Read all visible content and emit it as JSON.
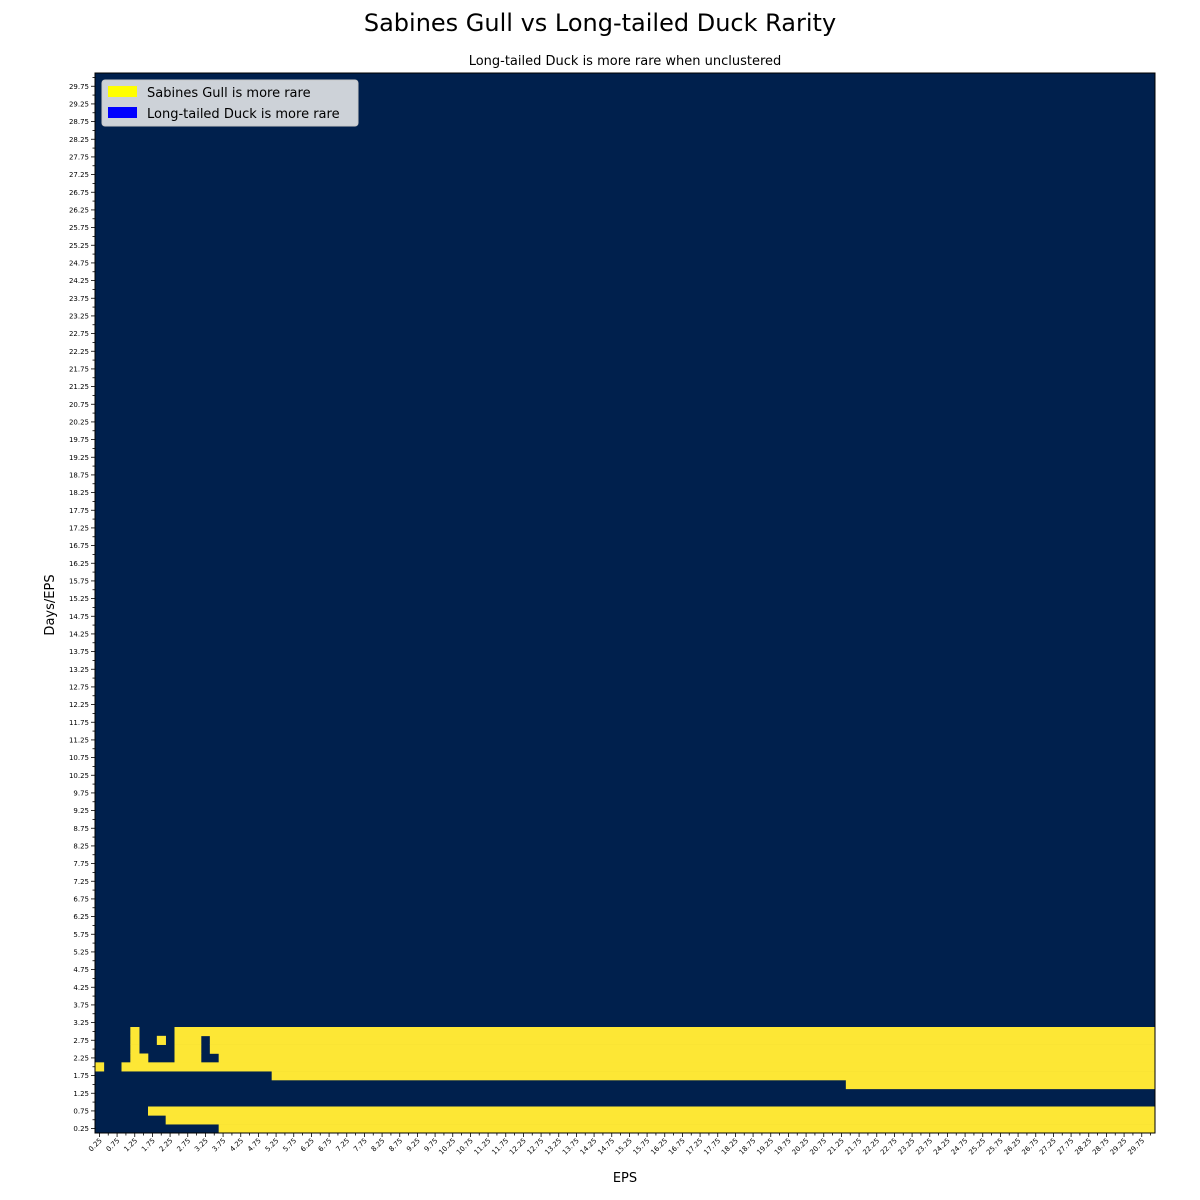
{
  "chart_data": {
    "type": "heatmap",
    "title": "Sabines Gull vs Long-tailed Duck Rarity",
    "subtitle": "Long-tailed Duck is more rare when unclustered",
    "xlabel": "EPS",
    "ylabel": "Days/EPS",
    "x_start": 0.25,
    "x_step": 0.25,
    "x_count": 120,
    "y_start": 0.25,
    "y_step": 0.25,
    "y_count": 120,
    "x_ticks": [
      "0.25",
      "0.75",
      "1.25",
      "1.75",
      "2.25",
      "2.75",
      "3.25",
      "3.75",
      "4.25",
      "4.75",
      "5.25",
      "5.75",
      "6.25",
      "6.75",
      "7.25",
      "7.75",
      "8.25",
      "8.75",
      "9.25",
      "9.75",
      "10.25",
      "10.75",
      "11.25",
      "11.75",
      "12.25",
      "12.75",
      "13.25",
      "13.75",
      "14.25",
      "14.75",
      "15.25",
      "15.75",
      "16.25",
      "16.75",
      "17.25",
      "17.75",
      "18.25",
      "18.75",
      "19.25",
      "19.75",
      "20.25",
      "20.75",
      "21.25",
      "21.75",
      "22.25",
      "22.75",
      "23.25",
      "23.75",
      "24.25",
      "24.75",
      "25.25",
      "25.75",
      "26.25",
      "26.75",
      "27.25",
      "27.75",
      "28.25",
      "28.75",
      "29.25",
      "29.75"
    ],
    "y_ticks": [
      "0.25",
      "0.75",
      "1.25",
      "1.75",
      "2.25",
      "2.75",
      "3.25",
      "3.75",
      "4.25",
      "4.75",
      "5.25",
      "5.75",
      "6.25",
      "6.75",
      "7.25",
      "7.75",
      "8.25",
      "8.75",
      "9.25",
      "9.75",
      "10.25",
      "10.75",
      "11.25",
      "11.75",
      "12.25",
      "12.75",
      "13.25",
      "13.75",
      "14.25",
      "14.75",
      "15.25",
      "15.75",
      "16.25",
      "16.75",
      "17.25",
      "17.75",
      "18.25",
      "18.75",
      "19.25",
      "19.75",
      "20.25",
      "20.75",
      "21.25",
      "21.75",
      "22.25",
      "22.75",
      "23.25",
      "23.75",
      "24.25",
      "24.75",
      "25.25",
      "25.75",
      "26.25",
      "26.75",
      "27.25",
      "27.75",
      "28.25",
      "28.75",
      "29.25",
      "29.75"
    ],
    "background_value": "Long-tailed Duck is more rare",
    "sabines_more_rare_rows": [
      {
        "y": 0.25,
        "x_from": 3.75,
        "x_to": 30.0
      },
      {
        "y": 0.5,
        "x_from": 2.25,
        "x_to": 30.0
      },
      {
        "y": 0.75,
        "x_from": 1.75,
        "x_to": 30.0
      },
      {
        "y": 1.5,
        "x_from": 21.5,
        "x_to": 30.0
      },
      {
        "y": 1.75,
        "x_from": 5.25,
        "x_to": 30.0
      },
      {
        "y": 2.0,
        "x_from": 0.25,
        "x_to": 0.25
      },
      {
        "y": 2.0,
        "x_from": 1.0,
        "x_to": 30.0
      },
      {
        "y": 2.25,
        "x_from": 1.25,
        "x_to": 1.5
      },
      {
        "y": 2.25,
        "x_from": 2.5,
        "x_to": 3.0
      },
      {
        "y": 2.25,
        "x_from": 3.75,
        "x_to": 30.0
      },
      {
        "y": 2.5,
        "x_from": 1.25,
        "x_to": 1.25
      },
      {
        "y": 2.5,
        "x_from": 2.5,
        "x_to": 3.0
      },
      {
        "y": 2.5,
        "x_from": 3.5,
        "x_to": 30.0
      },
      {
        "y": 2.75,
        "x_from": 1.25,
        "x_to": 1.25
      },
      {
        "y": 2.75,
        "x_from": 2.0,
        "x_to": 2.0
      },
      {
        "y": 2.75,
        "x_from": 2.5,
        "x_to": 3.0
      },
      {
        "y": 2.75,
        "x_from": 3.5,
        "x_to": 30.0
      },
      {
        "y": 3.0,
        "x_from": 1.25,
        "x_to": 1.25
      },
      {
        "y": 3.0,
        "x_from": 2.5,
        "x_to": 30.0
      }
    ],
    "legend": {
      "placement": "top-left",
      "entries": [
        {
          "label": "Sabines Gull is more rare",
          "color": "#FFFF00"
        },
        {
          "label": "Long-tailed Duck is more rare",
          "color": "#0000FF"
        }
      ]
    },
    "colors": {
      "sabines_more_rare_cell": "#FDE735",
      "long_tailed_more_rare_cell": "#00204D"
    }
  }
}
